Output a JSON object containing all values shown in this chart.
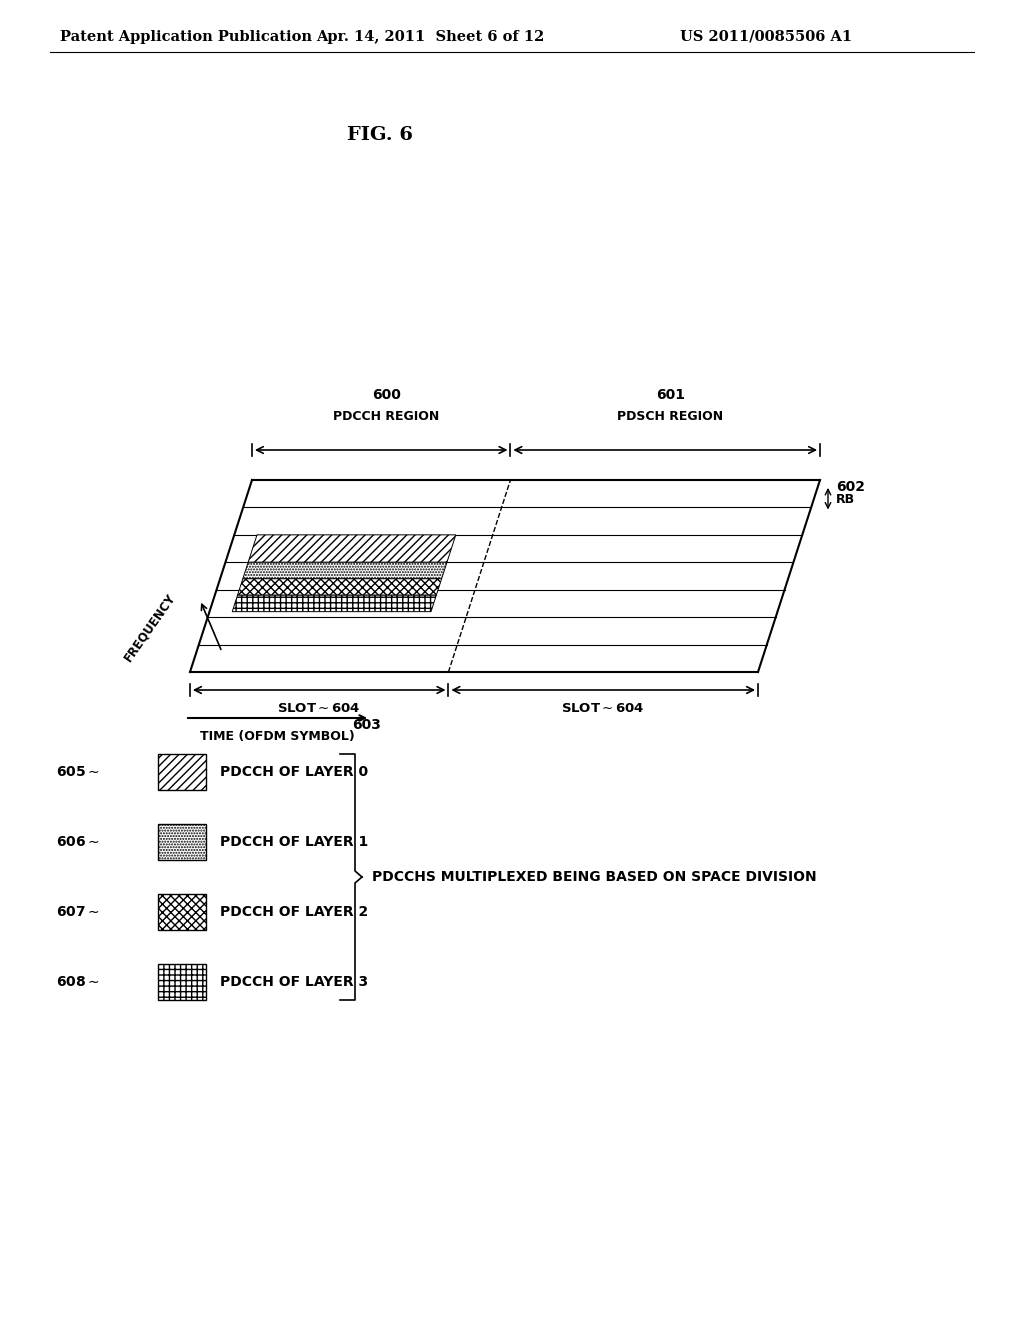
{
  "header_left": "Patent Application Publication",
  "header_center": "Apr. 14, 2011  Sheet 6 of 12",
  "header_right": "US 2011/0085506 A1",
  "fig_title": "FIG. 6",
  "label_600": "600",
  "label_601": "601",
  "label_602": "602",
  "label_603": "603",
  "label_604": "604",
  "label_605": "605",
  "label_606": "606",
  "label_607": "607",
  "label_608": "608",
  "text_pdcch_region": "PDCCH REGION",
  "text_pdsch_region": "PDSCH REGION",
  "text_rb": "RB",
  "text_frequency": "FREQUENCY",
  "text_slot": "SLOT",
  "text_time": "TIME (OFDM SYMBOL)",
  "text_layer0": "PDCCH OF LAYER 0",
  "text_layer1": "PDCCH OF LAYER 1",
  "text_layer2": "PDCCH OF LAYER 2",
  "text_layer3": "PDCCH OF LAYER 3",
  "text_pdcchs": "PDCCHS MULTIPLEXED BEING BASED ON SPACE DIVISION",
  "bg_color": "#ffffff",
  "line_color": "#000000"
}
